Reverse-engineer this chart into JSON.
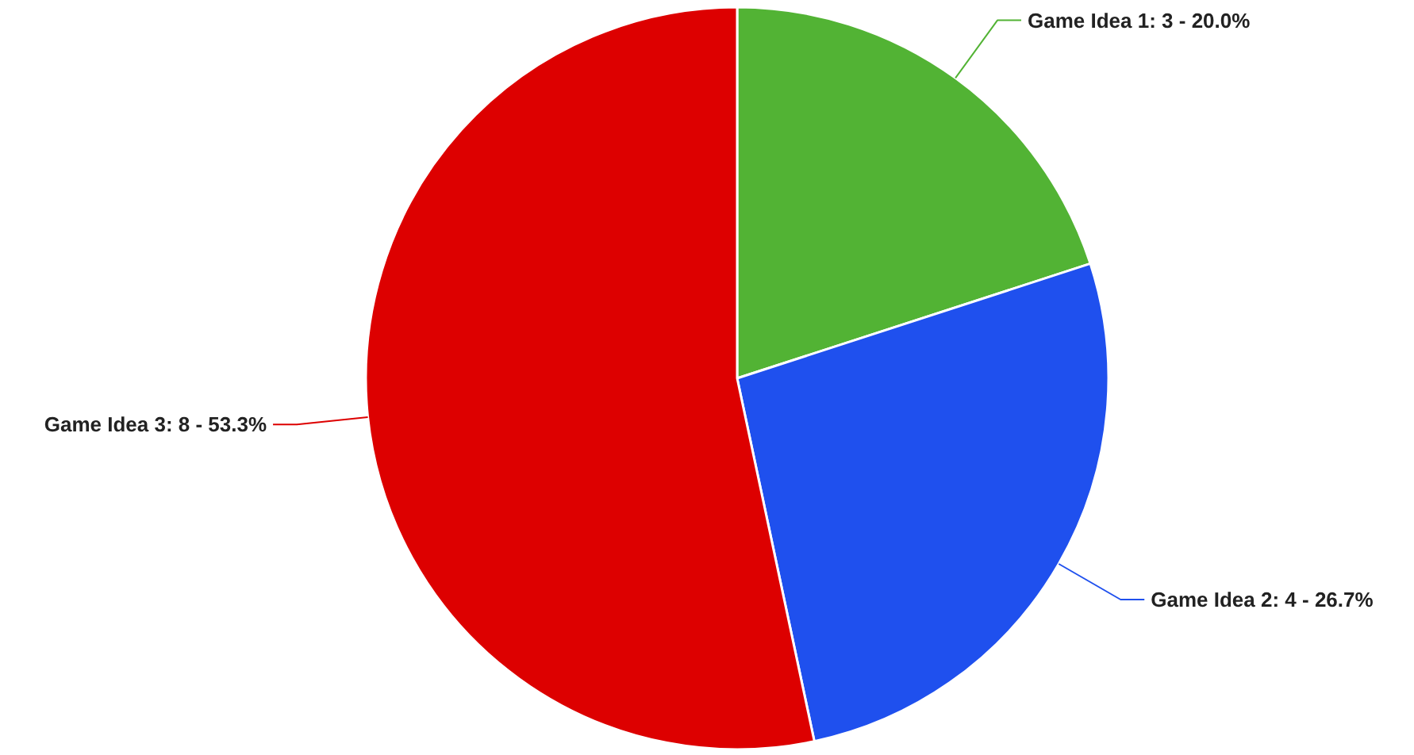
{
  "chart_data": {
    "type": "pie",
    "categories": [
      "Game Idea 1: 3 - 20.0%",
      "Game Idea 2: 4 - 26.7%",
      "Game Idea 3: 8 - 53.3%"
    ],
    "values": [
      3,
      4,
      8
    ],
    "colors": [
      "#52b334",
      "#1f50ee",
      "#dd0000"
    ],
    "legend": false
  }
}
